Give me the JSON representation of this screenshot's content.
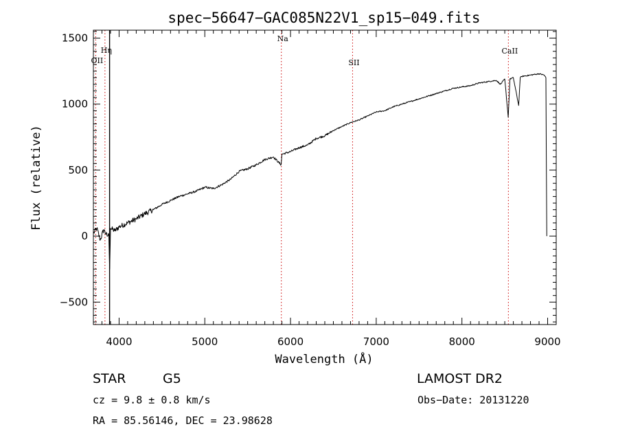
{
  "chart_data": {
    "type": "line",
    "title": "spec−56647−GAC085N22V1_sp15−049.fits",
    "xlabel": "Wavelength (Å)",
    "ylabel": "Flux (relative)",
    "xlim": [
      3700,
      9100
    ],
    "ylim": [
      -670,
      1560
    ],
    "xticks": [
      4000,
      5000,
      6000,
      7000,
      8000,
      9000
    ],
    "yticks": [
      -500,
      0,
      500,
      1000,
      1500
    ],
    "yticklabels": [
      "−500",
      "0",
      "500",
      "1000",
      "1500"
    ],
    "grid": false,
    "series": [
      {
        "color": "#000000",
        "x": [
          3700,
          3740,
          3780,
          3820,
          3860,
          3880,
          3890,
          3900,
          3950,
          4000,
          4100,
          4200,
          4300,
          4400,
          4500,
          4600,
          4700,
          4800,
          4900,
          5000,
          5100,
          5200,
          5300,
          5400,
          5500,
          5600,
          5700,
          5800,
          5890,
          5900,
          6000,
          6100,
          6200,
          6300,
          6400,
          6500,
          6600,
          6700,
          6800,
          6900,
          7000,
          7100,
          7200,
          7300,
          7400,
          7500,
          7600,
          7700,
          7800,
          7900,
          8000,
          8100,
          8200,
          8300,
          8400,
          8450,
          8500,
          8540,
          8560,
          8600,
          8662,
          8680,
          8700,
          8800,
          8900,
          8960,
          8980,
          8990
        ],
        "values": [
          20,
          60,
          -30,
          50,
          0,
          10,
          -250,
          60,
          40,
          70,
          100,
          130,
          170,
          200,
          240,
          270,
          300,
          320,
          340,
          370,
          360,
          390,
          430,
          490,
          510,
          540,
          580,
          600,
          540,
          620,
          640,
          670,
          690,
          740,
          760,
          800,
          830,
          860,
          880,
          910,
          940,
          950,
          980,
          1000,
          1020,
          1040,
          1060,
          1080,
          1100,
          1120,
          1130,
          1140,
          1160,
          1170,
          1180,
          1150,
          1190,
          900,
          1190,
          1200,
          990,
          1200,
          1210,
          1220,
          1230,
          1220,
          1200,
          0
        ]
      }
    ],
    "line_markers": [
      {
        "label": "OII",
        "x": 3727
      },
      {
        "label": "Hη",
        "x": 3835
      },
      {
        "label": "Na",
        "x": 5893
      },
      {
        "label": "SII",
        "x": 6724
      },
      {
        "label": "CaII",
        "x": 8542
      }
    ],
    "marker_color": "#cc0000"
  },
  "info": {
    "object_class": "STAR",
    "subclass": "G5",
    "survey": "LAMOST DR2",
    "redshift_text": "cz =  9.8 ± 0.8 km/s",
    "obs_date": "Obs−Date: 20131220",
    "coords": "RA =  85.56146, DEC =  23.98628"
  }
}
